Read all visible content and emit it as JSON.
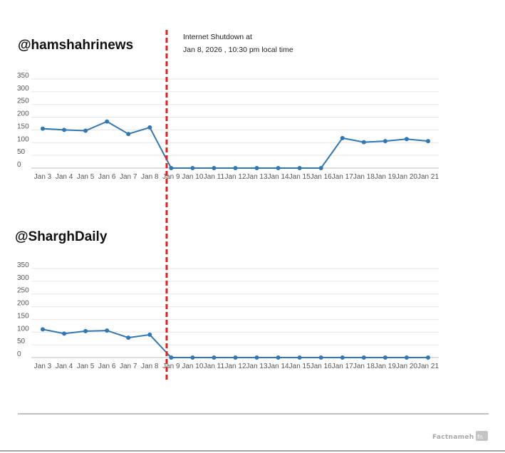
{
  "annotation": {
    "line1": "Internet Shutdown at",
    "line2": "Jan 8, 2026 , 10:30 pm local time",
    "color": "#e02020"
  },
  "series_color": "#2f78b7",
  "brand": {
    "name": "Factnameh",
    "color": "#a8a8a8"
  },
  "chart_data": [
    {
      "type": "line",
      "title": "@hamshahrinews",
      "categories": [
        "Jan 3",
        "Jan 4",
        "Jan 5",
        "Jan 6",
        "Jan 7",
        "Jan 8",
        "Jan 9",
        "Jan 10",
        "Jan 11",
        "Jan 12",
        "Jan 13",
        "Jan 14",
        "Jan 15",
        "Jan 16",
        "Jan 17",
        "Jan 18",
        "Jan 19",
        "Jan 20",
        "Jan 21"
      ],
      "values": [
        155,
        150,
        147,
        183,
        134,
        160,
        0,
        0,
        0,
        0,
        0,
        0,
        0,
        0,
        118,
        102,
        106,
        114,
        106
      ],
      "yticks": [
        0,
        50,
        100,
        150,
        200,
        250,
        300,
        350
      ],
      "ylim": [
        0,
        350
      ],
      "grid": true
    },
    {
      "type": "line",
      "title": "@SharghDaily",
      "categories": [
        "Jan 3",
        "Jan 4",
        "Jan 5",
        "Jan 6",
        "Jan 7",
        "Jan 8",
        "Jan 9",
        "Jan 10",
        "Jan 11",
        "Jan 12",
        "Jan 13",
        "Jan 14",
        "Jan 15",
        "Jan 16",
        "Jan 17",
        "Jan 18",
        "Jan 19",
        "Jan 20",
        "Jan 21"
      ],
      "values": [
        111,
        94,
        104,
        106,
        78,
        90,
        0,
        0,
        0,
        0,
        0,
        0,
        0,
        0,
        0,
        0,
        0,
        0,
        0
      ],
      "yticks": [
        0,
        50,
        100,
        150,
        200,
        250,
        300,
        350
      ],
      "ylim": [
        0,
        350
      ],
      "grid": true
    }
  ]
}
